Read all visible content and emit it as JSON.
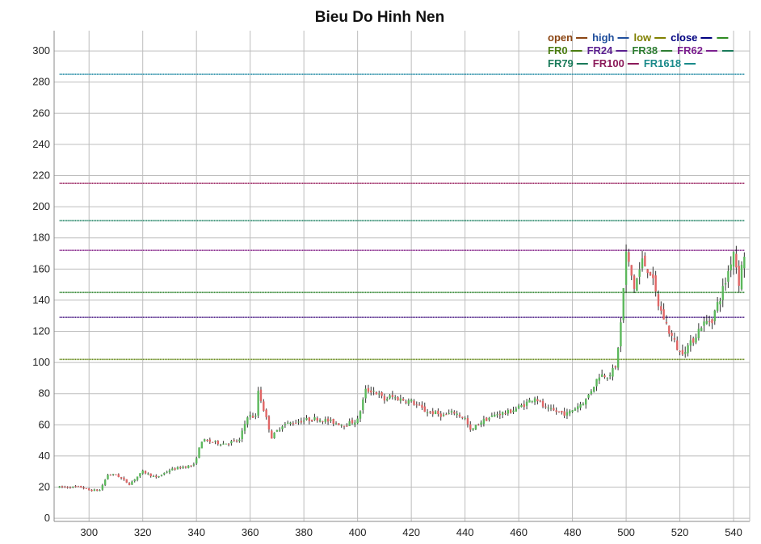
{
  "chart_data": {
    "type": "candlestick",
    "title": "Bieu Do Hinh Nen",
    "xlabel": "",
    "ylabel": "",
    "xlim": [
      287,
      546
    ],
    "ylim": [
      -2,
      313
    ],
    "x_ticks": [
      300,
      320,
      340,
      360,
      380,
      400,
      420,
      440,
      460,
      480,
      500,
      520,
      540
    ],
    "y_ticks": [
      0,
      20,
      40,
      60,
      80,
      100,
      120,
      140,
      160,
      180,
      200,
      220,
      240,
      260,
      280,
      300
    ],
    "grid": true,
    "legend": {
      "placement": "top-right",
      "entries": [
        {
          "label": "open",
          "color": "#8b4513"
        },
        {
          "label": "high",
          "color": "#1f4e9c"
        },
        {
          "label": "low",
          "color": "#808000"
        },
        {
          "label": "close",
          "color": "#000080"
        },
        {
          "label": "",
          "color": "#2e8b22"
        },
        {
          "label": "FR0",
          "color": "#4a7c10"
        },
        {
          "label": "FR24",
          "color": "#5a1f8f"
        },
        {
          "label": "FR38",
          "color": "#2e7d32"
        },
        {
          "label": "FR62",
          "color": "#7b1f8f"
        },
        {
          "label": "",
          "color": "#1a7a5a"
        },
        {
          "label": "FR79",
          "color": "#1a7a5a"
        },
        {
          "label": "FR100",
          "color": "#8b1a5a"
        },
        {
          "label": "FR1618",
          "color": "#1a8a8a"
        }
      ]
    },
    "fib_levels": [
      {
        "name": "FR0",
        "value": 102,
        "color": "#6b8e23"
      },
      {
        "name": "FR24",
        "value": 129,
        "color": "#5a2f8f"
      },
      {
        "name": "FR38",
        "value": 145,
        "color": "#3c8c3c"
      },
      {
        "name": "FR62",
        "value": 172,
        "color": "#8b2f8f"
      },
      {
        "name": "FR79",
        "value": 191,
        "color": "#2e8b6e"
      },
      {
        "name": "FR100",
        "value": 215,
        "color": "#a0306a"
      },
      {
        "name": "FR1618",
        "value": 285,
        "color": "#2a8fa8"
      }
    ],
    "anchors": [
      [
        289,
        20
      ],
      [
        297,
        20
      ],
      [
        300,
        18
      ],
      [
        304,
        18
      ],
      [
        307,
        28
      ],
      [
        310,
        28
      ],
      [
        315,
        22
      ],
      [
        320,
        30
      ],
      [
        325,
        26
      ],
      [
        330,
        31
      ],
      [
        335,
        33
      ],
      [
        339,
        34
      ],
      [
        342,
        50
      ],
      [
        350,
        48
      ],
      [
        356,
        50
      ],
      [
        359,
        66
      ],
      [
        362,
        65
      ],
      [
        363,
        82
      ],
      [
        366,
        64
      ],
      [
        368,
        52
      ],
      [
        372,
        60
      ],
      [
        380,
        63
      ],
      [
        385,
        64
      ],
      [
        395,
        60
      ],
      [
        400,
        63
      ],
      [
        403,
        82
      ],
      [
        406,
        82
      ],
      [
        410,
        76
      ],
      [
        412,
        78
      ],
      [
        420,
        75
      ],
      [
        425,
        69
      ],
      [
        432,
        66
      ],
      [
        436,
        68
      ],
      [
        440,
        64
      ],
      [
        442,
        56
      ],
      [
        446,
        62
      ],
      [
        452,
        67
      ],
      [
        456,
        68
      ],
      [
        462,
        73
      ],
      [
        466,
        78
      ],
      [
        470,
        70
      ],
      [
        478,
        67
      ],
      [
        485,
        76
      ],
      [
        490,
        92
      ],
      [
        493,
        92
      ],
      [
        496,
        96
      ],
      [
        498,
        125
      ],
      [
        500,
        170
      ],
      [
        503,
        148
      ],
      [
        506,
        165
      ],
      [
        509,
        158
      ],
      [
        512,
        137
      ],
      [
        516,
        120
      ],
      [
        520,
        106
      ],
      [
        524,
        112
      ],
      [
        528,
        124
      ],
      [
        532,
        128
      ],
      [
        535,
        142
      ],
      [
        537,
        152
      ],
      [
        540,
        172
      ],
      [
        542,
        152
      ],
      [
        544,
        170
      ]
    ],
    "seed": 7
  }
}
